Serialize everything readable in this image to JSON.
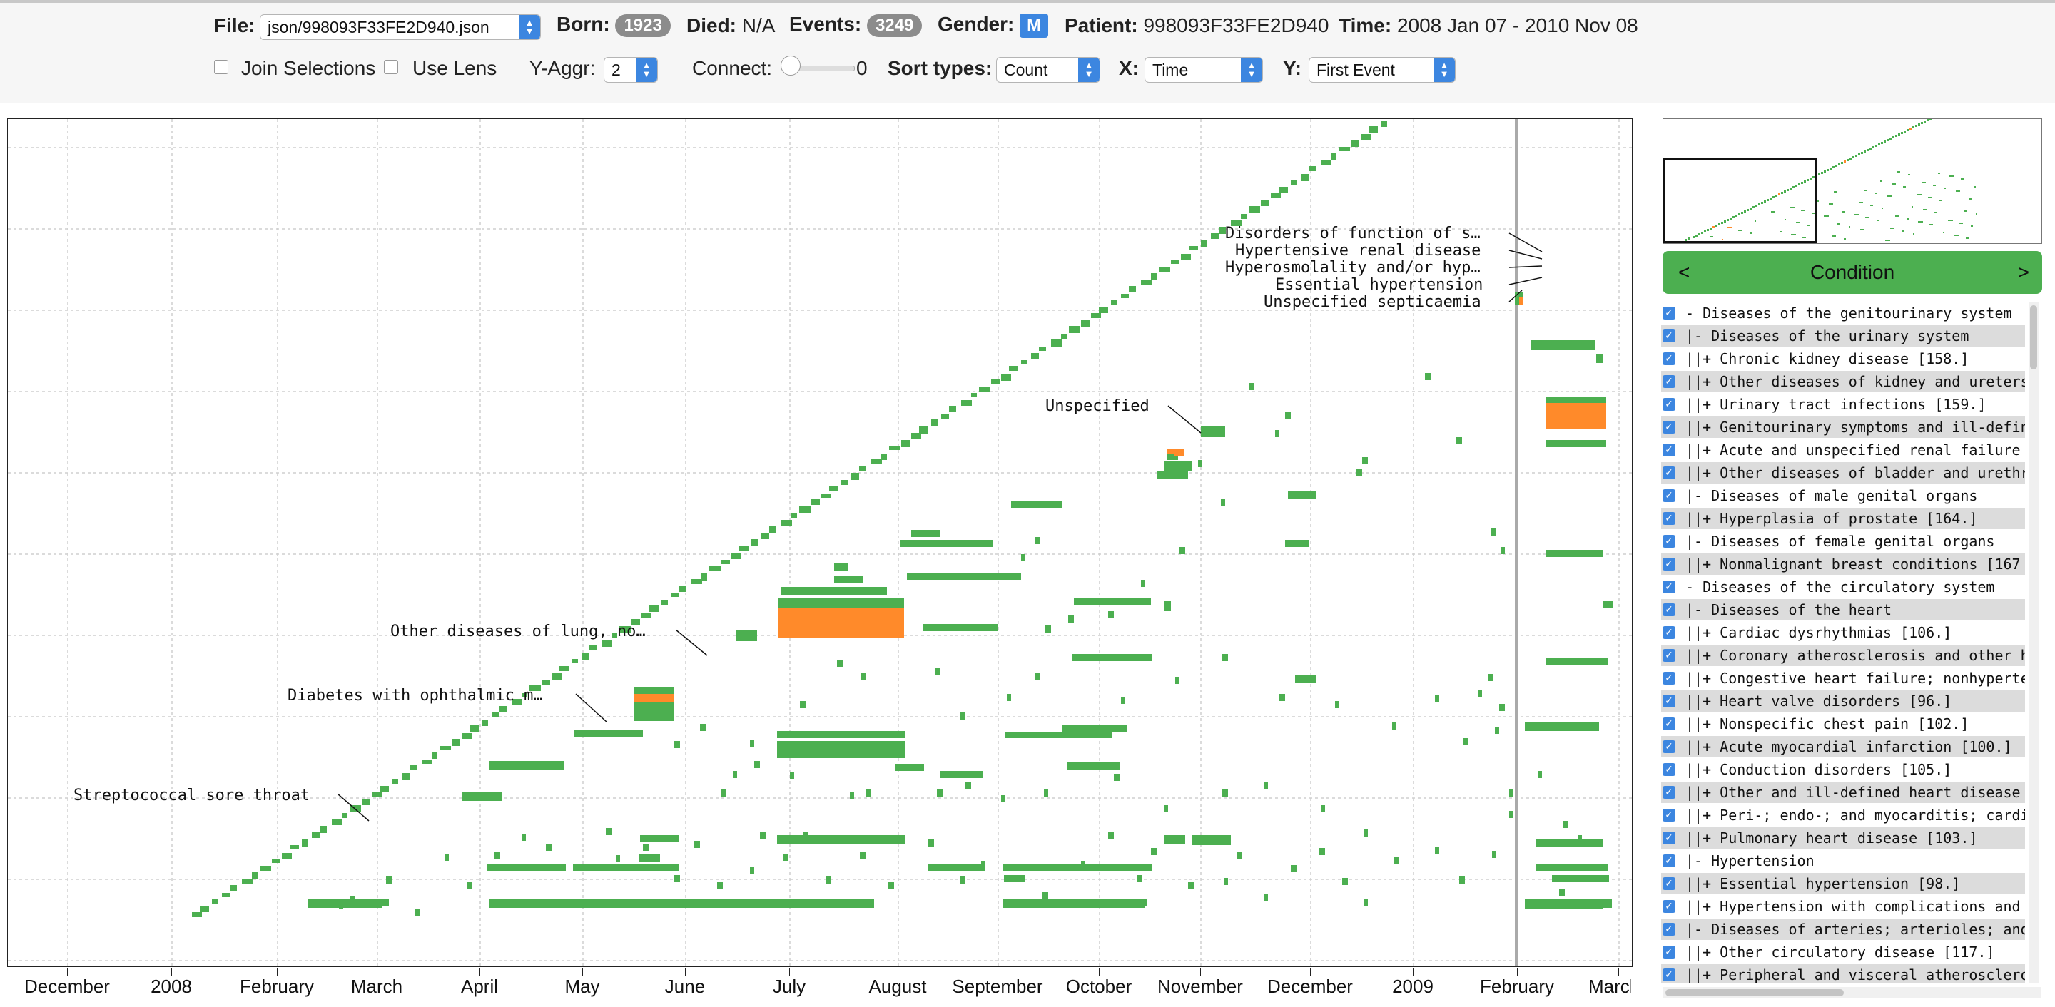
{
  "toolbar": {
    "file_label": "File:",
    "file_value": "json/998093F33FE2D940.json",
    "born_label": "Born:",
    "born_value": "1923",
    "died_label": "Died:",
    "died_value": "N/A",
    "events_label": "Events:",
    "events_value": "3249",
    "gender_label": "Gender:",
    "gender_value": "M",
    "patient_label": "Patient:",
    "patient_value": "998093F33FE2D940",
    "time_label": "Time:",
    "time_value": "2008 Jan 07 - 2010 Nov 08",
    "join_label": "Join Selections",
    "join_checked": false,
    "lens_label": "Use Lens",
    "lens_checked": false,
    "yaggr_label": "Y-Aggr:",
    "yaggr_value": "2",
    "connect_label": "Connect:",
    "connect_value": "0",
    "sort_label": "Sort types:",
    "sort_value": "Count",
    "x_label": "X:",
    "x_value": "Time",
    "y_label": "Y:",
    "y_value": "First Event"
  },
  "colors": {
    "event": "#4caf50",
    "highlight": "#ff8a2a",
    "accent": "#3c86e0"
  },
  "axis": {
    "ticks": [
      "December",
      "2008",
      "February",
      "March",
      "April",
      "May",
      "June",
      "July",
      "August",
      "September",
      "October",
      "November",
      "December",
      "2009",
      "February",
      "March"
    ]
  },
  "annotations": [
    "Disorders of function of s…",
    "Hypertensive renal disease",
    "Hyperosmolality and/or hyp…",
    "Essential hypertension",
    "Unspecified septicaemia",
    "Unspecified",
    "Other diseases of lung, no…",
    "Diabetes with ophthalmic m…",
    "Streptococcal sore throat"
  ],
  "sidebar": {
    "nav_prev": "<",
    "nav_title": "Condition",
    "nav_next": ">",
    "tree": [
      {
        "label": "- Diseases of the genitourinary system",
        "checked": true
      },
      {
        "label": "|- Diseases of the urinary system",
        "checked": true
      },
      {
        "label": "||+ Chronic kidney disease [158.]",
        "checked": true
      },
      {
        "label": "||+ Other diseases of kidney and ureters",
        "checked": true
      },
      {
        "label": "||+ Urinary tract infections [159.]",
        "checked": true
      },
      {
        "label": "||+ Genitourinary symptoms and ill-defined",
        "checked": true
      },
      {
        "label": "||+ Acute and unspecified renal failure",
        "checked": true
      },
      {
        "label": "||+ Other diseases of bladder and urethra",
        "checked": true
      },
      {
        "label": "|- Diseases of male genital organs",
        "checked": true
      },
      {
        "label": "||+ Hyperplasia of prostate [164.]",
        "checked": true
      },
      {
        "label": "|- Diseases of female genital organs",
        "checked": true
      },
      {
        "label": "||+ Nonmalignant breast conditions [167",
        "checked": true
      },
      {
        "label": "- Diseases of the circulatory system",
        "checked": true
      },
      {
        "label": "|- Diseases of the heart",
        "checked": true
      },
      {
        "label": "||+ Cardiac dysrhythmias [106.]",
        "checked": true
      },
      {
        "label": "||+ Coronary atherosclerosis and other h",
        "checked": true
      },
      {
        "label": "||+ Congestive heart failure; nonhypertens",
        "checked": true
      },
      {
        "label": "||+ Heart valve disorders [96.]",
        "checked": true
      },
      {
        "label": "||+ Nonspecific chest pain [102.]",
        "checked": true
      },
      {
        "label": "||+ Acute myocardial infarction [100.]",
        "checked": true
      },
      {
        "label": "||+ Conduction disorders [105.]",
        "checked": true
      },
      {
        "label": "||+ Other and ill-defined heart disease",
        "checked": true
      },
      {
        "label": "||+ Peri-; endo-; and myocarditis; cardi",
        "checked": true
      },
      {
        "label": "||+ Pulmonary heart disease [103.]",
        "checked": true
      },
      {
        "label": "|- Hypertension",
        "checked": true
      },
      {
        "label": "||+ Essential hypertension [98.]",
        "checked": true
      },
      {
        "label": "||+ Hypertension with complications and",
        "checked": true
      },
      {
        "label": "|- Diseases of arteries; arterioles; and",
        "checked": true
      },
      {
        "label": "||+ Other circulatory disease [117.]",
        "checked": true
      },
      {
        "label": "||+ Peripheral and visceral atherosclerosis",
        "checked": true
      }
    ]
  }
}
